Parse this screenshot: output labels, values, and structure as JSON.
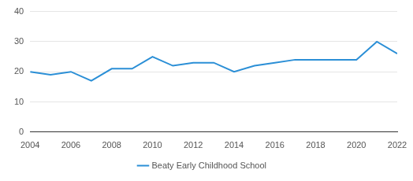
{
  "chart_data": {
    "type": "line",
    "x": [
      2004,
      2005,
      2006,
      2007,
      2008,
      2009,
      2010,
      2011,
      2012,
      2013,
      2014,
      2015,
      2016,
      2017,
      2018,
      2019,
      2020,
      2021,
      2022
    ],
    "series": [
      {
        "name": "Beaty Early Childhood School",
        "color": "#2b8fd6",
        "values": [
          20,
          19,
          20,
          17,
          21,
          21,
          25,
          22,
          23,
          23,
          20,
          22,
          23,
          24,
          24,
          24,
          24,
          30,
          26
        ]
      }
    ],
    "xlim": [
      2004,
      2022
    ],
    "xticks": [
      2004,
      2006,
      2008,
      2010,
      2012,
      2014,
      2016,
      2018,
      2020,
      2022
    ],
    "ylim": [
      0,
      40
    ],
    "yticks": [
      0,
      10,
      20,
      30,
      40
    ],
    "grid": true,
    "legend": "bottom"
  }
}
